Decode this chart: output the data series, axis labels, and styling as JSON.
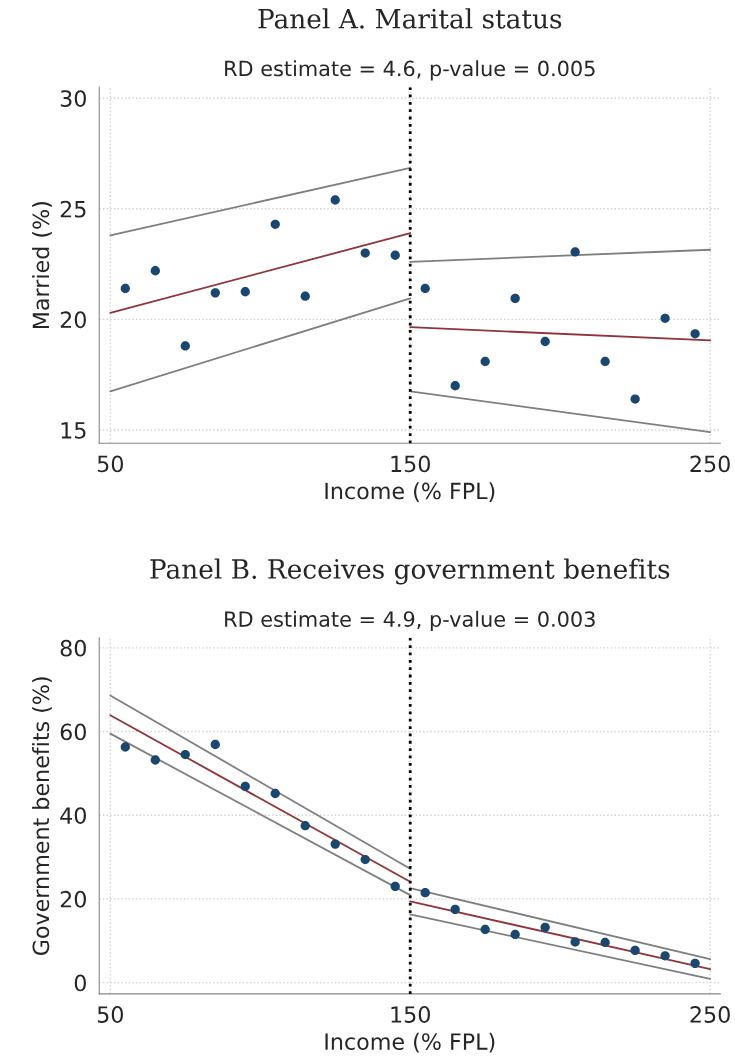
{
  "chart_data": [
    {
      "type": "scatter",
      "title": "Panel A. Marital status",
      "subtitle": "RD estimate = 4.6, p-value = 0.005",
      "xlabel": "Income (% FPL)",
      "ylabel": "Married (%)",
      "xlim": [
        46.3,
        253.4
      ],
      "ylim": [
        14.4,
        30.5
      ],
      "xticks": [
        50,
        150,
        250
      ],
      "yticks": [
        15,
        20,
        25,
        30
      ],
      "grid": true,
      "series": [
        {
          "marker": "circle",
          "color": "#1a476f",
          "x": [
            55,
            65,
            75,
            85,
            95,
            105,
            115,
            125,
            135,
            145,
            155,
            165,
            175,
            185,
            195,
            205,
            215,
            225,
            235,
            245
          ],
          "values": [
            21.4,
            22.2,
            18.8,
            21.2,
            21.25,
            24.3,
            21.05,
            25.4,
            23.0,
            22.9,
            21.4,
            17.0,
            18.1,
            20.95,
            19.0,
            23.05,
            18.1,
            16.4,
            20.05,
            19.35
          ]
        },
        {
          "type": "line",
          "color": "#90353b",
          "x": [
            50,
            150
          ],
          "values": [
            20.3,
            23.9
          ]
        },
        {
          "type": "line",
          "color": "#7f7f7f",
          "x": [
            50,
            150
          ],
          "values": [
            23.8,
            26.85
          ]
        },
        {
          "type": "line",
          "color": "#7f7f7f",
          "x": [
            50,
            150
          ],
          "values": [
            16.75,
            20.95
          ]
        },
        {
          "type": "line",
          "color": "#90353b",
          "x": [
            150,
            250
          ],
          "values": [
            19.65,
            19.05
          ]
        },
        {
          "type": "line",
          "color": "#7f7f7f",
          "x": [
            150,
            250
          ],
          "values": [
            22.6,
            23.15
          ]
        },
        {
          "type": "line",
          "color": "#7f7f7f",
          "x": [
            150,
            250
          ],
          "values": [
            16.75,
            14.9
          ]
        }
      ],
      "ref_lines": [
        {
          "axis": "x",
          "value": 150,
          "color": "#000000",
          "line_style": "dotted"
        }
      ]
    },
    {
      "type": "scatter",
      "title": "Panel B. Receives government benefits",
      "subtitle": "RD estimate = 4.9, p-value = 0.003",
      "xlabel": "Income (% FPL)",
      "ylabel": "Government benefits (%)",
      "xlim": [
        46.3,
        253.4
      ],
      "ylim": [
        -2.7,
        82.4
      ],
      "xticks": [
        50,
        150,
        250
      ],
      "yticks": [
        0,
        20,
        40,
        60,
        80
      ],
      "grid": true,
      "series": [
        {
          "marker": "circle",
          "color": "#1a476f",
          "x": [
            55,
            65,
            75,
            85,
            95,
            105,
            115,
            125,
            135,
            145,
            155,
            165,
            175,
            185,
            195,
            205,
            215,
            225,
            235,
            245
          ],
          "values": [
            56.3,
            53.2,
            54.5,
            56.9,
            46.9,
            45.2,
            37.5,
            33.1,
            29.4,
            23.0,
            21.5,
            17.5,
            12.7,
            11.5,
            13.2,
            9.7,
            9.6,
            7.7,
            6.4,
            4.6
          ]
        },
        {
          "type": "line",
          "color": "#90353b",
          "x": [
            50,
            150
          ],
          "values": [
            63.9,
            24.1
          ]
        },
        {
          "type": "line",
          "color": "#7f7f7f",
          "x": [
            50,
            150
          ],
          "values": [
            68.6,
            27.2
          ]
        },
        {
          "type": "line",
          "color": "#7f7f7f",
          "x": [
            50,
            150
          ],
          "values": [
            59.5,
            20.9
          ]
        },
        {
          "type": "line",
          "color": "#90353b",
          "x": [
            150,
            250
          ],
          "values": [
            19.4,
            3.2
          ]
        },
        {
          "type": "line",
          "color": "#7f7f7f",
          "x": [
            150,
            250
          ],
          "values": [
            22.6,
            5.6
          ]
        },
        {
          "type": "line",
          "color": "#7f7f7f",
          "x": [
            150,
            250
          ],
          "values": [
            16.3,
            0.9
          ]
        }
      ],
      "ref_lines": [
        {
          "axis": "x",
          "value": 150,
          "color": "#000000",
          "line_style": "dotted"
        }
      ]
    }
  ]
}
